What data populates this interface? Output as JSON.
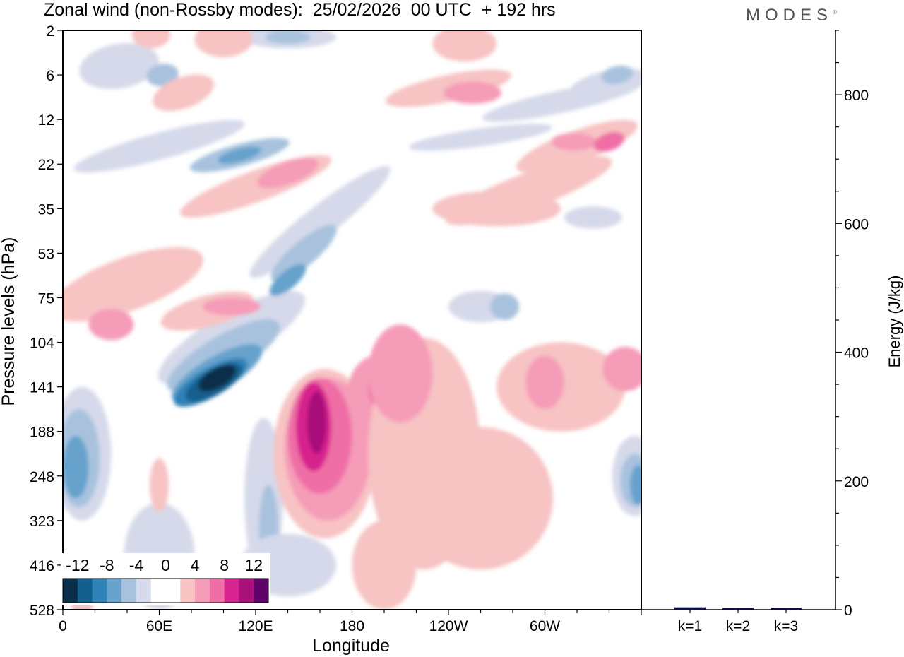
{
  "title": "Zonal wind (non-Rossby modes):  25/02/2026  00 UTC  + 192 hrs",
  "brand": "MODES",
  "brand_mark": "®",
  "chart_data": [
    {
      "type": "heatmap",
      "title": "Zonal wind (non-Rossby modes):  25/02/2026  00 UTC  + 192 hrs",
      "xlabel": "Longitude",
      "ylabel": "Pressure levels (hPa)",
      "x_ticks": [
        {
          "deg": 0,
          "label": "0"
        },
        {
          "deg": 60,
          "label": "60E"
        },
        {
          "deg": 120,
          "label": "120E"
        },
        {
          "deg": 180,
          "label": "180"
        },
        {
          "deg": 240,
          "label": "120W"
        },
        {
          "deg": 300,
          "label": "60W"
        }
      ],
      "xlim": [
        0,
        360
      ],
      "y_levels": [
        "2",
        "6",
        "12",
        "22",
        "35",
        "53",
        "75",
        "104",
        "141",
        "188",
        "248",
        "323",
        "416",
        "528"
      ],
      "colorbar": {
        "tick_labels": [
          "-12",
          "-8",
          "-4",
          "0",
          "4",
          "8",
          "12"
        ],
        "colors": [
          "#0b2e48",
          "#135f8e",
          "#2f82b5",
          "#66a2cc",
          "#a8c2de",
          "#d5d9ea",
          "#ffffff",
          "#ffffff",
          "#f7c3c3",
          "#f59cb8",
          "#ef6ea6",
          "#d7238d",
          "#a8117a",
          "#5e0468"
        ]
      },
      "features": [
        {
          "name": "negative-jet-core",
          "lon": [
            60,
            140
          ],
          "level": [
            75,
            188
          ],
          "min": -14
        },
        {
          "name": "positive-core-180",
          "lon": [
            150,
            190
          ],
          "level": [
            104,
            323
          ],
          "max": 12
        },
        {
          "name": "negative-west-edge",
          "lon": [
            0,
            20
          ],
          "level": [
            141,
            323
          ],
          "min": -8
        },
        {
          "name": "negative-east-edge",
          "lon": [
            350,
            360
          ],
          "level": [
            188,
            323
          ],
          "min": -8
        }
      ]
    },
    {
      "type": "bar",
      "categories": [
        "k=1",
        "k=2",
        "k=3"
      ],
      "values": [
        2,
        1,
        1
      ],
      "ylabel": "Energy (J/kg)",
      "ylim": [
        0,
        900
      ],
      "y_ticks": [
        0,
        200,
        400,
        600,
        800
      ]
    }
  ]
}
